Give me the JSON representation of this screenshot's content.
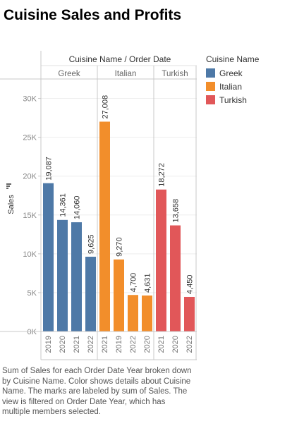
{
  "title": "Cuisine Sales and Profits",
  "caption": "Sum of Sales for each Order Date Year broken down by Cuisine Name.  Color shows details about Cuisine Name.  The marks are labeled by sum of Sales. The view is filtered on Order Date Year, which has multiple members selected.",
  "legend": {
    "title": "Cuisine Name",
    "items": [
      {
        "label": "Greek",
        "color": "#4e79a7"
      },
      {
        "label": "Italian",
        "color": "#f28e2b"
      },
      {
        "label": "Turkish",
        "color": "#e15759"
      }
    ]
  },
  "chart_data": {
    "type": "bar",
    "header": "Cuisine Name / Order Date",
    "ylabel": "Sales",
    "ylim": [
      0,
      32500
    ],
    "yticks": [
      0,
      5000,
      10000,
      15000,
      20000,
      25000,
      30000
    ],
    "ytick_labels": [
      "0K",
      "5K",
      "10K",
      "15K",
      "20K",
      "25K",
      "30K"
    ],
    "groups": [
      {
        "name": "Greek",
        "color": "#4e79a7",
        "bars": [
          {
            "year": "2019",
            "value": 19087,
            "label": "19,087"
          },
          {
            "year": "2020",
            "value": 14361,
            "label": "14,361"
          },
          {
            "year": "2021",
            "value": 14060,
            "label": "14,060"
          },
          {
            "year": "2022",
            "value": 9625,
            "label": "9,625"
          }
        ]
      },
      {
        "name": "Italian",
        "color": "#f28e2b",
        "bars": [
          {
            "year": "2021",
            "value": 27008,
            "label": "27,008"
          },
          {
            "year": "2019",
            "value": 9270,
            "label": "9,270"
          },
          {
            "year": "2022",
            "value": 4700,
            "label": "4,700"
          },
          {
            "year": "2020",
            "value": 4631,
            "label": "4,631"
          }
        ]
      },
      {
        "name": "Turkish",
        "color": "#e15759",
        "bars": [
          {
            "year": "2021",
            "value": 18272,
            "label": "18,272"
          },
          {
            "year": "2020",
            "value": 13658,
            "label": "13,658"
          },
          {
            "year": "2022",
            "value": 4450,
            "label": "4,450"
          }
        ]
      }
    ]
  }
}
